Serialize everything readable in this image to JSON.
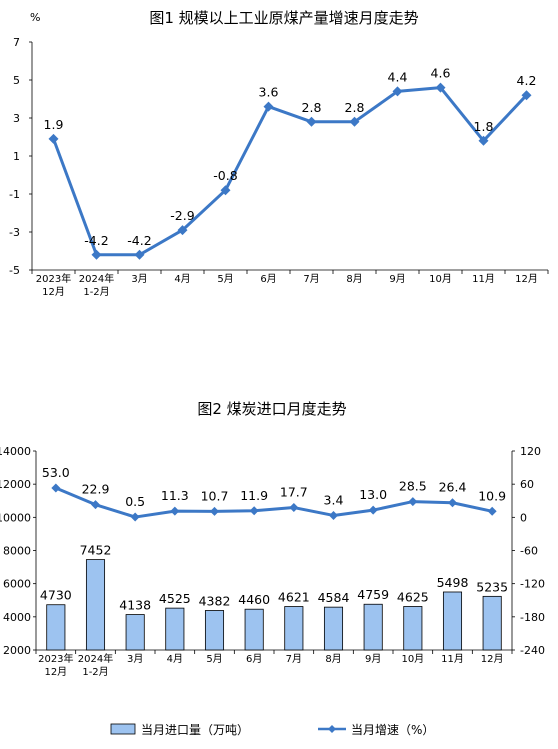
{
  "chart_data": [
    {
      "type": "line",
      "title": "图1  规模以上工业原煤产量增速月度走势",
      "ylabel": "%",
      "categories": [
        "2023年\n12月",
        "2024年\n1-2月",
        "3月",
        "4月",
        "5月",
        "6月",
        "7月",
        "8月",
        "9月",
        "10月",
        "11月",
        "12月"
      ],
      "series": [
        {
          "values": [
            1.9,
            -4.2,
            -4.2,
            -2.9,
            -0.8,
            3.6,
            2.8,
            2.8,
            4.4,
            4.6,
            1.8,
            4.2
          ],
          "color": "#3c78c6"
        }
      ],
      "data_labels": [
        "1.9",
        "-4.2",
        "-4.2",
        "-2.9",
        "-0.8",
        "3.6",
        "2.8",
        "2.8",
        "4.4",
        "4.6",
        "1.8",
        "4.2"
      ],
      "ylim": [
        -5,
        7
      ],
      "yticks": [
        "7",
        "5",
        "3",
        "1",
        "-1",
        "-3",
        "-5"
      ],
      "grid": false
    },
    {
      "type": "bar",
      "title": "图2  煤炭进口月度走势",
      "categories": [
        "2023年\n12月",
        "2024年\n1-2月",
        "3月",
        "4月",
        "5月",
        "6月",
        "7月",
        "8月",
        "9月",
        "10月",
        "11月",
        "12月"
      ],
      "series": [
        {
          "name": "当月进口量（万吨）",
          "type": "bar",
          "axis": "left",
          "values": [
            4730,
            7452,
            4138,
            4525,
            4382,
            4460,
            4621,
            4584,
            4759,
            4625,
            5498,
            5235
          ],
          "color": "#9dc3f0"
        },
        {
          "name": "当月增速（%）",
          "type": "line",
          "axis": "right",
          "values": [
            53.0,
            22.9,
            0.5,
            11.3,
            10.7,
            11.9,
            17.7,
            3.4,
            13.0,
            28.5,
            26.4,
            10.9
          ],
          "color": "#3c78c6"
        }
      ],
      "bar_labels": [
        "4730",
        "7452",
        "4138",
        "4525",
        "4382",
        "4460",
        "4621",
        "4584",
        "4759",
        "4625",
        "5498",
        "5235"
      ],
      "line_labels": [
        "53.0",
        "22.9",
        "0.5",
        "11.3",
        "10.7",
        "11.9",
        "17.7",
        "3.4",
        "13.0",
        "28.5",
        "26.4",
        "10.9"
      ],
      "ylim_left": [
        2000,
        14000
      ],
      "yticks_left": [
        "14000",
        "12000",
        "10000",
        "8000",
        "6000",
        "4000",
        "2000"
      ],
      "ylim_right": [
        -240,
        120
      ],
      "yticks_right": [
        "120",
        "60",
        "0",
        "-60",
        "-120",
        "-180",
        "-240"
      ],
      "legend": [
        "当月进口量（万吨）",
        "当月增速（%）"
      ],
      "legend_position": "bottom",
      "grid": false
    }
  ]
}
